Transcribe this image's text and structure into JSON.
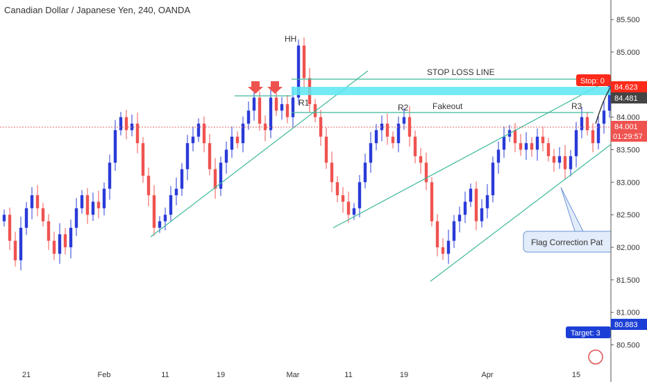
{
  "chart_data": {
    "type": "candlestick",
    "title": "Canadian Dollar / Japanese Yen, 240, OANDA",
    "ylim": [
      80.25,
      85.8
    ],
    "y_ticks": [
      "85.500",
      "85.000",
      "84.500",
      "84.000",
      "83.500",
      "83.000",
      "82.500",
      "82.000",
      "81.500",
      "81.000",
      "80.500"
    ],
    "x_ticks": [
      {
        "label": "21",
        "i": 4
      },
      {
        "label": "Feb",
        "i": 18
      },
      {
        "label": "11",
        "i": 29
      },
      {
        "label": "19",
        "i": 39
      },
      {
        "label": "Mar",
        "i": 52
      },
      {
        "label": "11",
        "i": 62
      },
      {
        "label": "19",
        "i": 72
      },
      {
        "label": "Apr",
        "i": 87
      },
      {
        "label": "15",
        "i": 103
      }
    ],
    "colors": {
      "up": "#2a3bd8",
      "down": "#ef5350",
      "channel": "#3cb89a",
      "level": "#3cb89a",
      "zone": "#5ce8f2",
      "price_line": "#e06060",
      "stop": "#ff2a1a",
      "target": "#1b3fd6",
      "current": "#444444"
    },
    "closes": [
      82.5,
      82.1,
      81.8,
      82.3,
      82.6,
      82.8,
      82.6,
      82.4,
      82.1,
      81.9,
      82.2,
      82.0,
      82.3,
      82.6,
      82.8,
      82.5,
      82.7,
      82.6,
      82.9,
      83.3,
      83.8,
      84.0,
      83.8,
      83.9,
      83.6,
      83.1,
      82.8,
      82.3,
      82.4,
      82.5,
      82.8,
      82.9,
      83.2,
      83.6,
      83.7,
      83.9,
      83.6,
      83.2,
      82.9,
      83.3,
      83.5,
      83.7,
      83.6,
      83.9,
      84.1,
      84.3,
      83.9,
      83.8,
      84.3,
      84.1,
      84.2,
      84.0,
      84.3,
      85.1,
      84.6,
      84.2,
      84.0,
      83.7,
      83.3,
      83.0,
      82.8,
      82.7,
      82.5,
      82.6,
      83.0,
      83.3,
      83.6,
      83.8,
      83.9,
      83.7,
      83.6,
      83.9,
      84.0,
      83.7,
      83.4,
      83.3,
      83.0,
      82.4,
      82.0,
      81.9,
      82.1,
      82.4,
      82.5,
      82.7,
      82.9,
      82.4,
      82.6,
      82.8,
      83.3,
      83.5,
      83.7,
      83.8,
      83.6,
      83.5,
      83.6,
      83.5,
      83.7,
      83.6,
      83.4,
      83.3,
      83.4,
      83.2,
      83.4,
      83.8,
      84.0,
      83.8,
      83.6,
      83.9,
      84.1,
      84.48
    ],
    "current_price": "84.481",
    "price_levels": [
      {
        "value": "84.623",
        "type": "stop"
      },
      {
        "value": "84.481",
        "type": "current"
      },
      {
        "value": "84.001",
        "type": "price-line"
      },
      {
        "value": "01:29:57",
        "type": "countdown"
      },
      {
        "value": "80.883",
        "type": "target"
      }
    ],
    "annotations": [
      "HH",
      "R1",
      "R2",
      "R3",
      "STOP LOSS LINE",
      "Fakeout",
      "Flag Correction Pat",
      "Stop: 0",
      "Target: 3"
    ]
  }
}
